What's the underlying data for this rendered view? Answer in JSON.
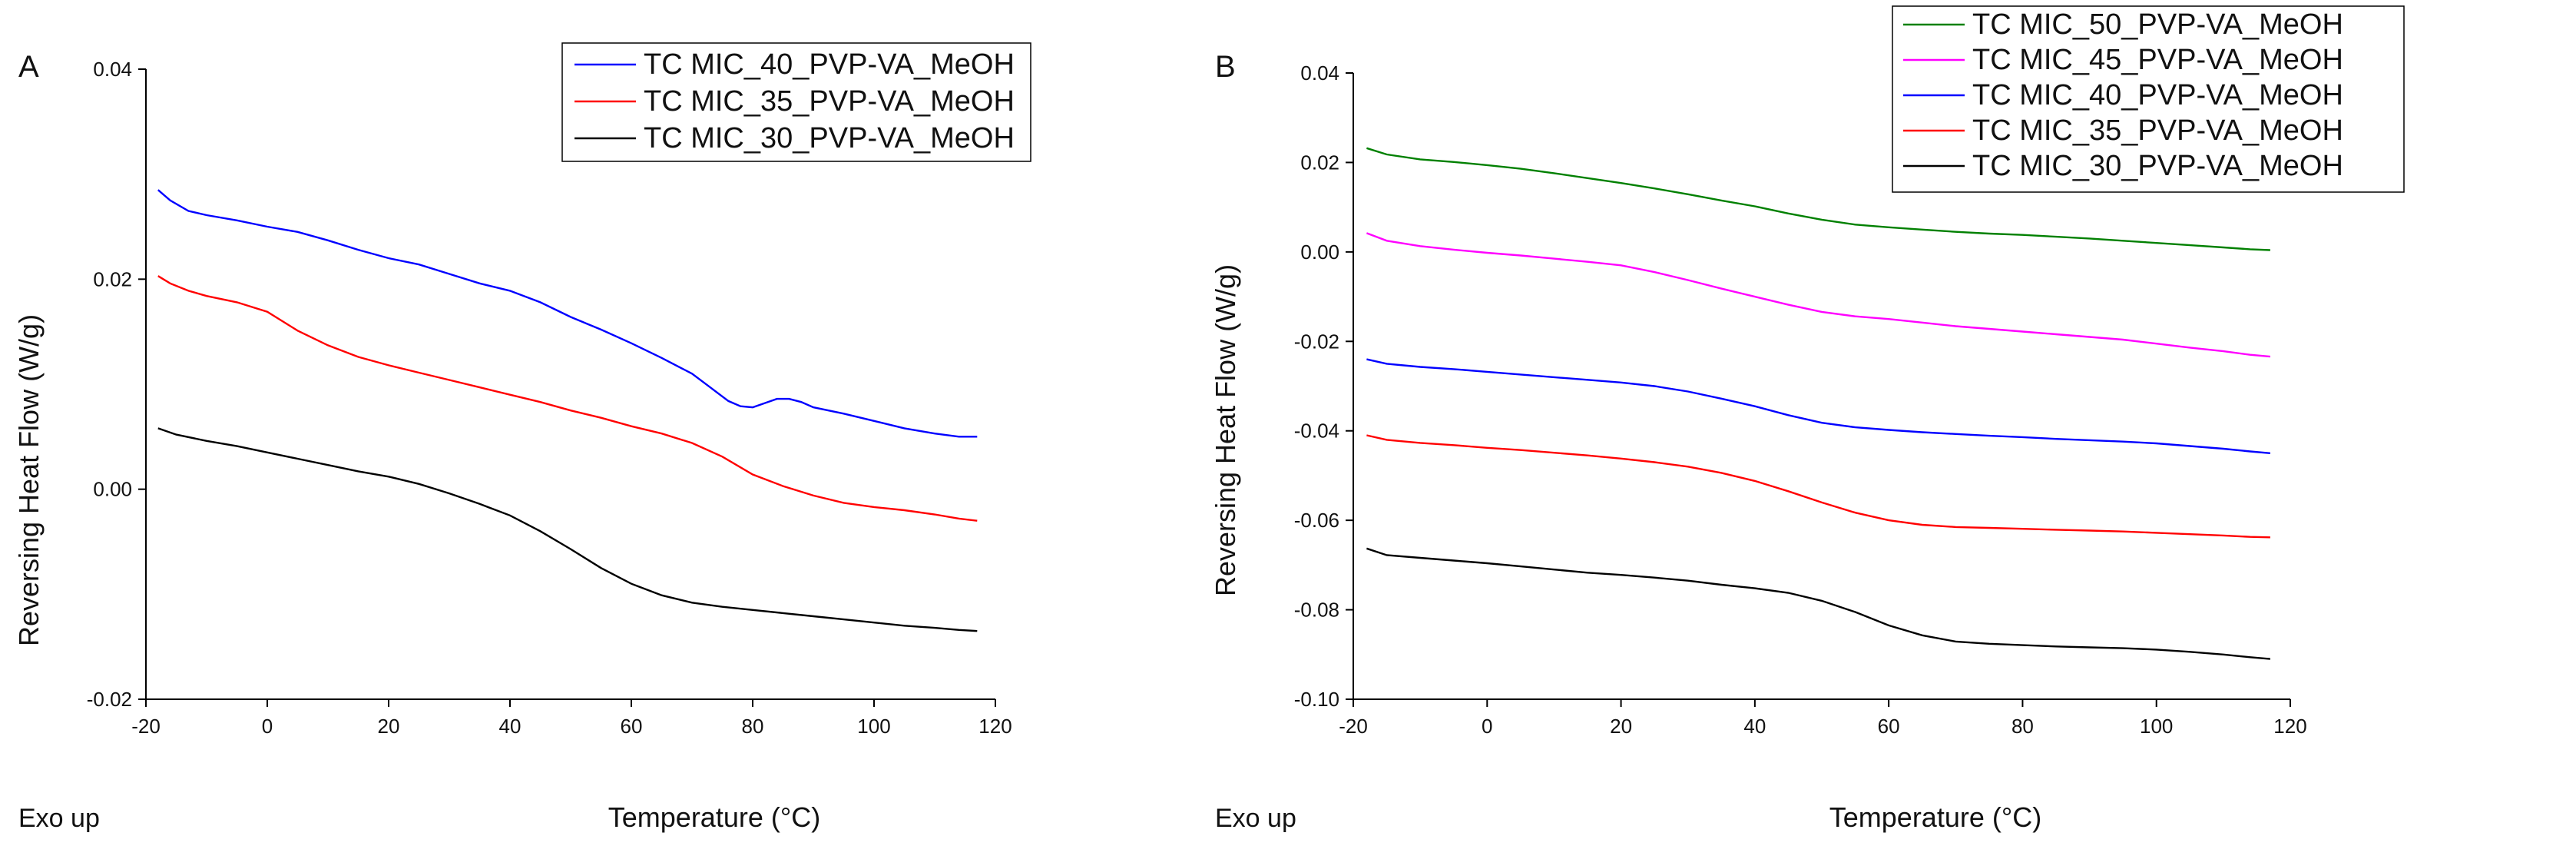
{
  "chart_data": [
    {
      "type": "line",
      "panel_label": "A",
      "exo_label": "Exo up",
      "xlabel": "Temperature (°C)",
      "ylabel": "Reversing Heat Flow (W/g)",
      "xlim": [
        -20,
        120
      ],
      "ylim": [
        -0.02,
        0.04
      ],
      "xticks": [
        -20,
        0,
        20,
        40,
        60,
        80,
        100,
        120
      ],
      "xtick_labels": [
        "-20",
        "0",
        "20",
        "40",
        "60",
        "80",
        "100",
        "120"
      ],
      "yticks": [
        -0.02,
        0.0,
        0.02,
        0.04
      ],
      "ytick_labels": [
        "-0.02",
        "0.00",
        "0.02",
        "0.04"
      ],
      "legend_position": "top-right",
      "series": [
        {
          "name": "TC MIC_40_PVP-VA_MeOH",
          "color": "#0000ff",
          "x": [
            -18,
            -16,
            -13,
            -10,
            -5,
            0,
            5,
            10,
            15,
            20,
            25,
            30,
            35,
            40,
            45,
            50,
            55,
            60,
            65,
            70,
            73,
            76,
            78,
            80,
            82,
            84,
            86,
            88,
            90,
            95,
            100,
            105,
            110,
            114,
            117
          ],
          "y": [
            0.0285,
            0.0275,
            0.0265,
            0.0261,
            0.0256,
            0.025,
            0.0245,
            0.0237,
            0.0228,
            0.022,
            0.0214,
            0.0205,
            0.0196,
            0.0189,
            0.0178,
            0.0164,
            0.0152,
            0.0139,
            0.0125,
            0.011,
            0.0097,
            0.0084,
            0.0079,
            0.0078,
            0.0082,
            0.0086,
            0.0086,
            0.0083,
            0.0078,
            0.0072,
            0.0065,
            0.0058,
            0.0053,
            0.005,
            0.005
          ]
        },
        {
          "name": "TC MIC_35_PVP-VA_MeOH",
          "color": "#ff0000",
          "x": [
            -18,
            -16,
            -13,
            -10,
            -5,
            0,
            5,
            10,
            15,
            20,
            25,
            30,
            35,
            40,
            45,
            50,
            55,
            60,
            65,
            70,
            75,
            80,
            85,
            90,
            95,
            100,
            105,
            110,
            114,
            117
          ],
          "y": [
            0.0203,
            0.0196,
            0.0189,
            0.0184,
            0.0178,
            0.0169,
            0.0151,
            0.0137,
            0.0126,
            0.0118,
            0.0111,
            0.0104,
            0.0097,
            0.009,
            0.0083,
            0.0075,
            0.0068,
            0.006,
            0.0053,
            0.0044,
            0.0031,
            0.0014,
            0.0003,
            -0.0006,
            -0.0013,
            -0.0017,
            -0.002,
            -0.0024,
            -0.0028,
            -0.003
          ]
        },
        {
          "name": "TC MIC_30_PVP-VA_MeOH",
          "color": "#000000",
          "x": [
            -18,
            -15,
            -10,
            -5,
            0,
            5,
            10,
            15,
            20,
            25,
            30,
            35,
            40,
            45,
            50,
            55,
            60,
            65,
            70,
            75,
            80,
            85,
            90,
            95,
            100,
            105,
            110,
            114,
            117
          ],
          "y": [
            0.0058,
            0.0052,
            0.0046,
            0.0041,
            0.0035,
            0.0029,
            0.0023,
            0.0017,
            0.0012,
            0.0005,
            -0.0004,
            -0.0014,
            -0.0025,
            -0.004,
            -0.0057,
            -0.0075,
            -0.009,
            -0.0101,
            -0.0108,
            -0.0112,
            -0.0115,
            -0.0118,
            -0.0121,
            -0.0124,
            -0.0127,
            -0.013,
            -0.0132,
            -0.0134,
            -0.0135
          ]
        }
      ]
    },
    {
      "type": "line",
      "panel_label": "B",
      "exo_label": "Exo up",
      "xlabel": "Temperature (°C)",
      "ylabel": "Reversing Heat Flow (W/g)",
      "xlim": [
        -20,
        120
      ],
      "ylim": [
        -0.1,
        0.04
      ],
      "xticks": [
        -20,
        0,
        20,
        40,
        60,
        80,
        100,
        120
      ],
      "xtick_labels": [
        "-20",
        "0",
        "20",
        "40",
        "60",
        "80",
        "100",
        "120"
      ],
      "yticks": [
        -0.1,
        -0.08,
        -0.06,
        -0.04,
        -0.02,
        0.0,
        0.02,
        0.04
      ],
      "ytick_labels": [
        "-0.10",
        "-0.08",
        "-0.06",
        "-0.04",
        "-0.02",
        "0.00",
        "0.02",
        "0.04"
      ],
      "legend_position": "top-right",
      "series": [
        {
          "name": "TC MIC_50_PVP-VA_MeOH",
          "color": "#008000",
          "x": [
            -18,
            -15,
            -10,
            -5,
            0,
            5,
            10,
            15,
            20,
            25,
            30,
            35,
            40,
            45,
            50,
            55,
            60,
            65,
            70,
            75,
            80,
            85,
            90,
            95,
            100,
            105,
            110,
            114,
            117
          ],
          "y": [
            0.0232,
            0.0218,
            0.0207,
            0.0201,
            0.0194,
            0.0186,
            0.0176,
            0.0165,
            0.0154,
            0.0142,
            0.0129,
            0.0115,
            0.0102,
            0.0086,
            0.0072,
            0.0061,
            0.0055,
            0.005,
            0.0045,
            0.0041,
            0.0038,
            0.0034,
            0.003,
            0.0025,
            0.002,
            0.0015,
            0.001,
            0.0006,
            0.0004
          ]
        },
        {
          "name": "TC MIC_45_PVP-VA_MeOH",
          "color": "#ff00ff",
          "x": [
            -18,
            -15,
            -10,
            -5,
            0,
            5,
            10,
            15,
            20,
            25,
            30,
            35,
            40,
            45,
            50,
            55,
            60,
            65,
            70,
            75,
            80,
            85,
            90,
            95,
            100,
            105,
            110,
            114,
            117
          ],
          "y": [
            0.0042,
            0.0025,
            0.0013,
            0.0005,
            -0.0002,
            -0.0008,
            -0.0015,
            -0.0022,
            -0.003,
            -0.0045,
            -0.0063,
            -0.0082,
            -0.01,
            -0.0118,
            -0.0134,
            -0.0144,
            -0.015,
            -0.0158,
            -0.0166,
            -0.0172,
            -0.0178,
            -0.0184,
            -0.019,
            -0.0196,
            -0.0205,
            -0.0214,
            -0.0222,
            -0.023,
            -0.0234
          ]
        },
        {
          "name": "TC MIC_40_PVP-VA_MeOH",
          "color": "#0000ff",
          "x": [
            -18,
            -15,
            -10,
            -5,
            0,
            5,
            10,
            15,
            20,
            25,
            30,
            35,
            40,
            45,
            50,
            55,
            60,
            65,
            70,
            75,
            80,
            85,
            90,
            95,
            100,
            105,
            110,
            114,
            117
          ],
          "y": [
            -0.024,
            -0.025,
            -0.0257,
            -0.0262,
            -0.0268,
            -0.0274,
            -0.028,
            -0.0286,
            -0.0292,
            -0.03,
            -0.0312,
            -0.0328,
            -0.0345,
            -0.0365,
            -0.0382,
            -0.0392,
            -0.0398,
            -0.0403,
            -0.0407,
            -0.0411,
            -0.0414,
            -0.0418,
            -0.0421,
            -0.0424,
            -0.0428,
            -0.0434,
            -0.044,
            -0.0446,
            -0.045
          ]
        },
        {
          "name": "TC MIC_35_PVP-VA_MeOH",
          "color": "#ff0000",
          "x": [
            -18,
            -15,
            -10,
            -5,
            0,
            5,
            10,
            15,
            20,
            25,
            30,
            35,
            40,
            45,
            50,
            55,
            60,
            65,
            70,
            75,
            80,
            85,
            90,
            95,
            100,
            105,
            110,
            114,
            117
          ],
          "y": [
            -0.041,
            -0.042,
            -0.0427,
            -0.0432,
            -0.0438,
            -0.0443,
            -0.0449,
            -0.0455,
            -0.0462,
            -0.047,
            -0.048,
            -0.0494,
            -0.0512,
            -0.0535,
            -0.056,
            -0.0583,
            -0.06,
            -0.061,
            -0.0615,
            -0.0617,
            -0.0619,
            -0.0621,
            -0.0623,
            -0.0625,
            -0.0628,
            -0.0631,
            -0.0634,
            -0.0637,
            -0.0638
          ]
        },
        {
          "name": "TC MIC_30_PVP-VA_MeOH",
          "color": "#000000",
          "x": [
            -18,
            -15,
            -10,
            -5,
            0,
            5,
            10,
            15,
            20,
            25,
            30,
            35,
            40,
            45,
            50,
            55,
            60,
            65,
            70,
            75,
            80,
            85,
            90,
            95,
            100,
            105,
            110,
            114,
            117
          ],
          "y": [
            -0.0663,
            -0.0678,
            -0.0684,
            -0.069,
            -0.0696,
            -0.0703,
            -0.071,
            -0.0717,
            -0.0722,
            -0.0728,
            -0.0735,
            -0.0744,
            -0.0752,
            -0.0762,
            -0.078,
            -0.0805,
            -0.0835,
            -0.0857,
            -0.0871,
            -0.0876,
            -0.0879,
            -0.0882,
            -0.0884,
            -0.0886,
            -0.0889,
            -0.0894,
            -0.09,
            -0.0906,
            -0.091
          ]
        }
      ]
    }
  ]
}
